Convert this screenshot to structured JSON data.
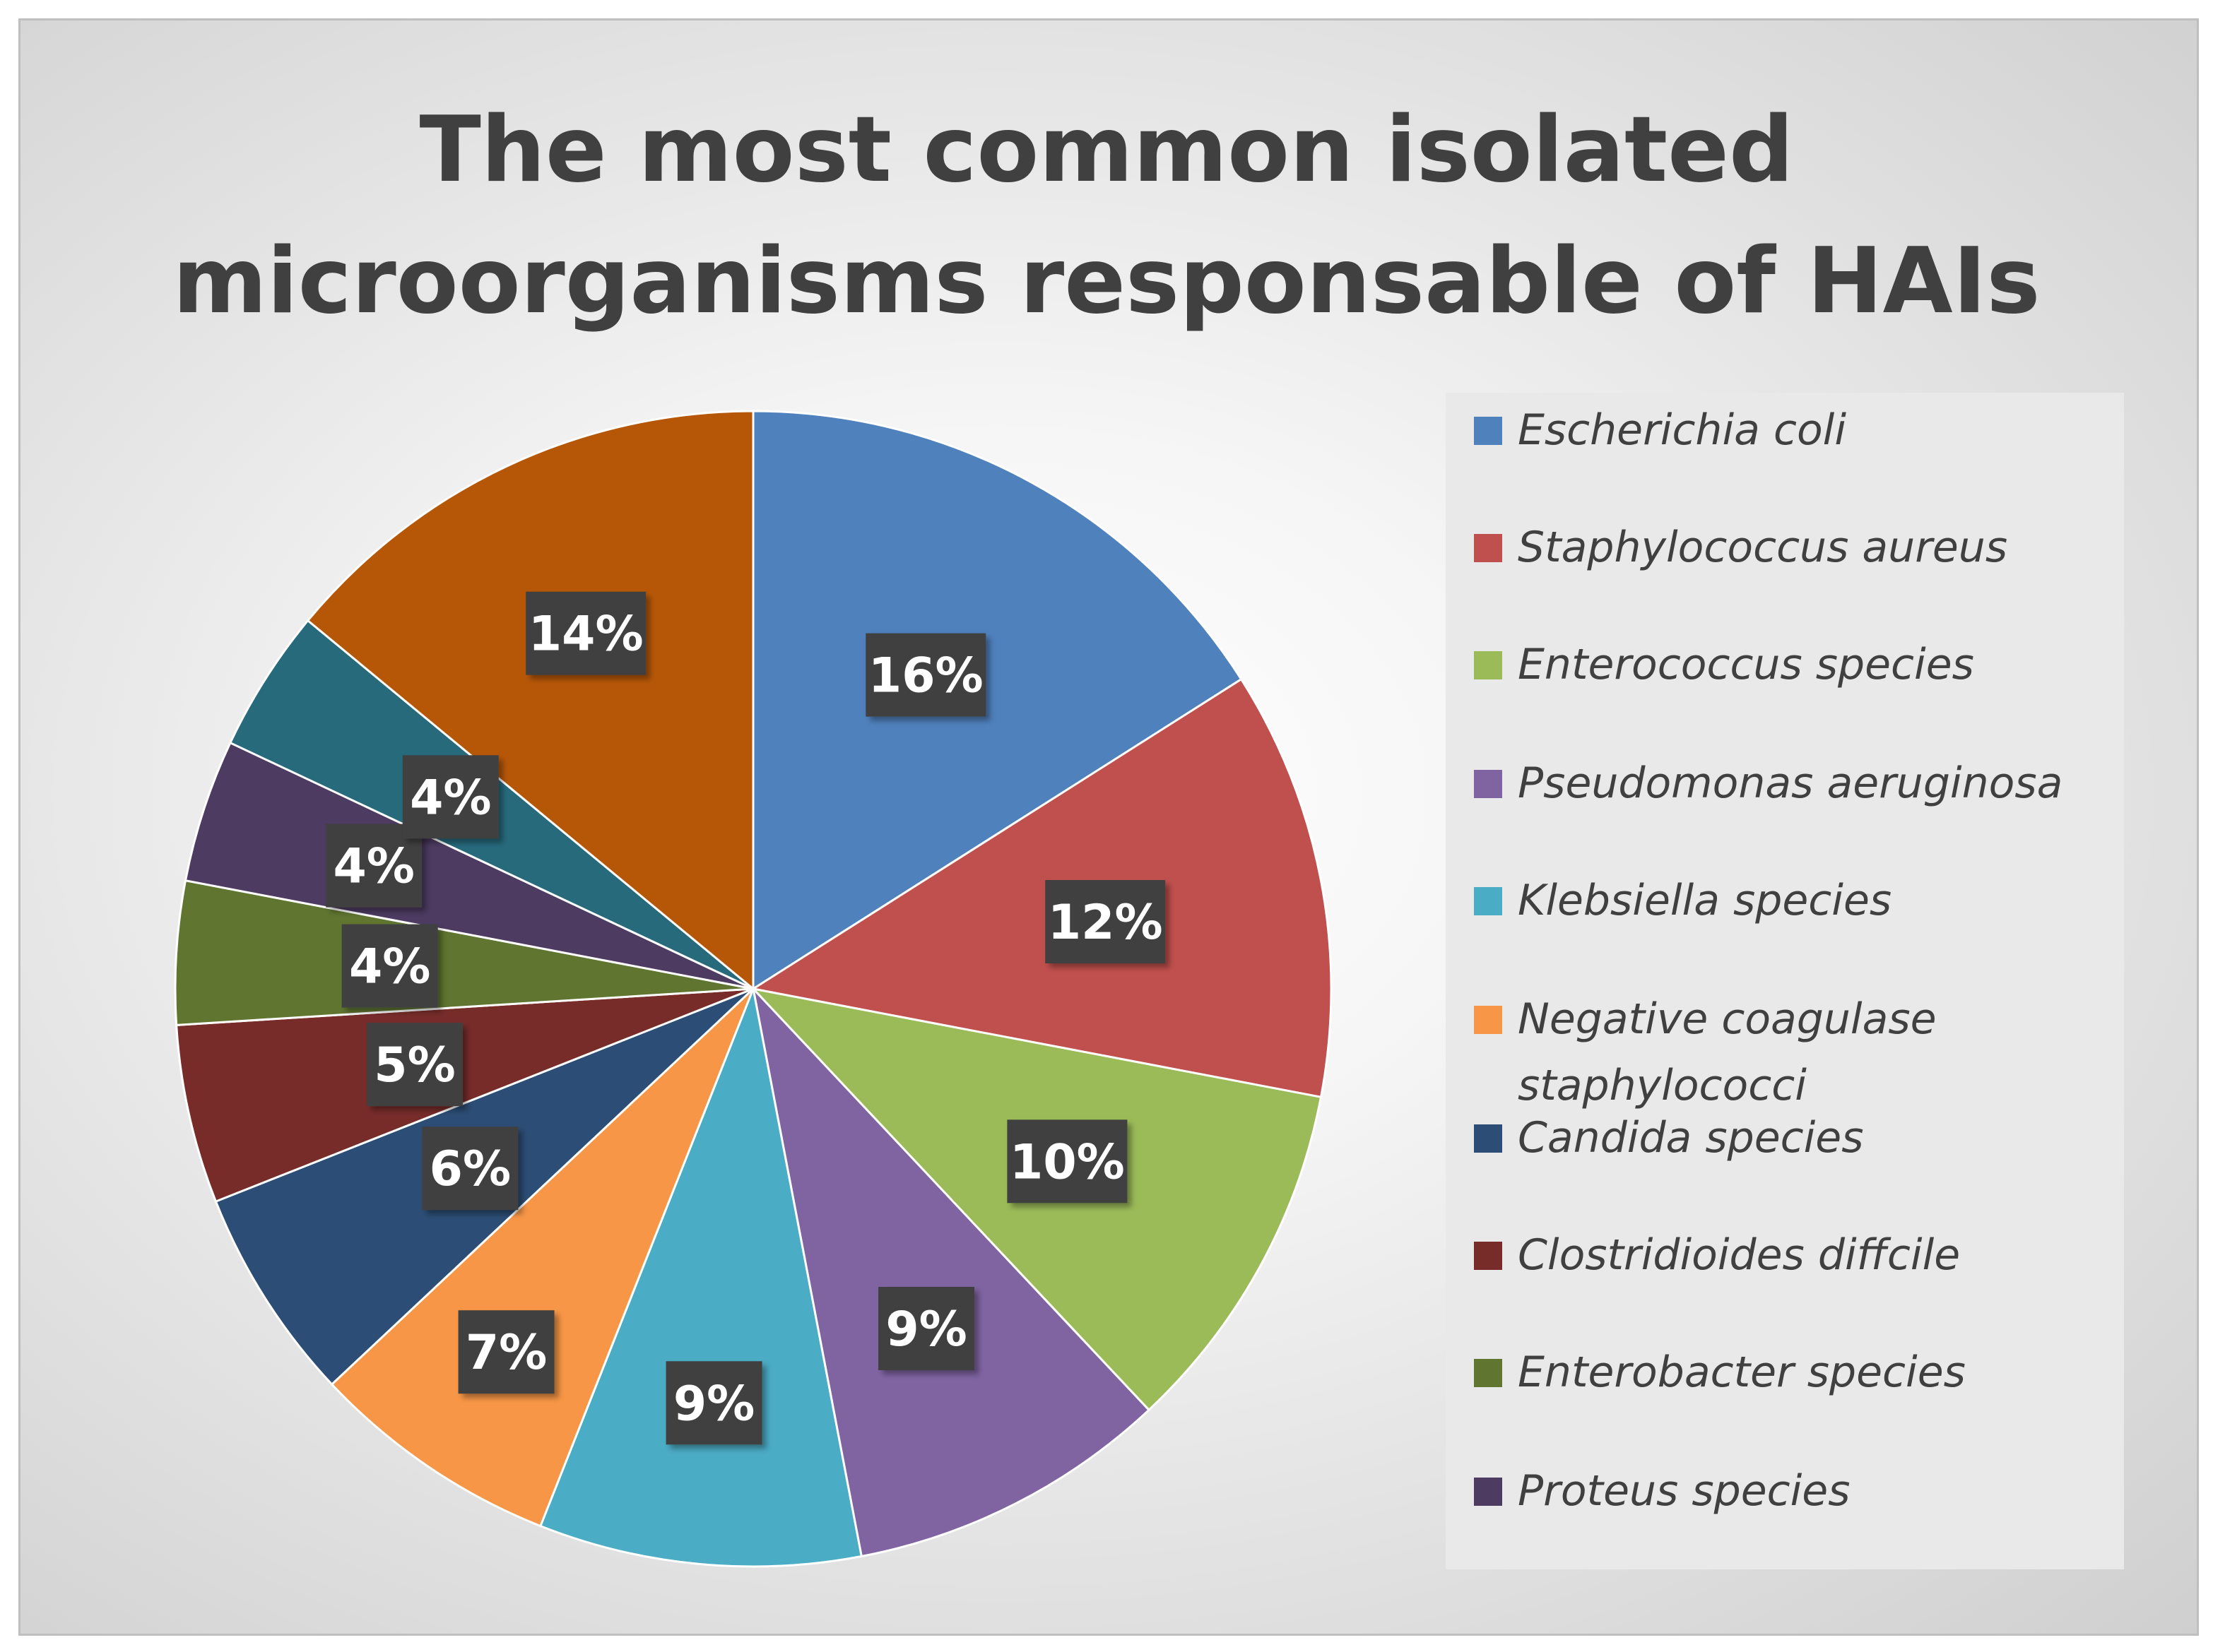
{
  "chart_data": {
    "type": "pie",
    "title": "The most common isolated microorganisms responsable of HAIs",
    "legend_position": "right",
    "slices": [
      {
        "label": "Escherichia coli",
        "value": 16,
        "display": "16%",
        "color": "#4F81BD"
      },
      {
        "label": "Staphylococcus aureus",
        "value": 12,
        "display": "12%",
        "color": "#C0504D"
      },
      {
        "label": "Enterococcus species",
        "value": 10,
        "display": "10%",
        "color": "#9BBB59"
      },
      {
        "label": "Pseudomonas aeruginosa",
        "value": 9,
        "display": "9%",
        "color": "#8064A2"
      },
      {
        "label": "Klebsiella species",
        "value": 9,
        "display": "9%",
        "color": "#4BACC6"
      },
      {
        "label": "Negative coagulase staphylococci",
        "value": 7,
        "display": "7%",
        "color": "#F79646"
      },
      {
        "label": "Candida species",
        "value": 6,
        "display": "6%",
        "color": "#2C4D75"
      },
      {
        "label": "Clostridioides diffcile",
        "value": 5,
        "display": "5%",
        "color": "#772C2A"
      },
      {
        "label": "Enterobacter species",
        "value": 4,
        "display": "4%",
        "color": "#5F7530"
      },
      {
        "label": "Proteus species",
        "value": 4,
        "display": "4%",
        "color": "#4D3B62"
      },
      {
        "label": "",
        "value": 4,
        "display": "4%",
        "color": "#276A7C"
      },
      {
        "label": "",
        "value": 14,
        "display": "14%",
        "color": "#B65708"
      }
    ]
  }
}
